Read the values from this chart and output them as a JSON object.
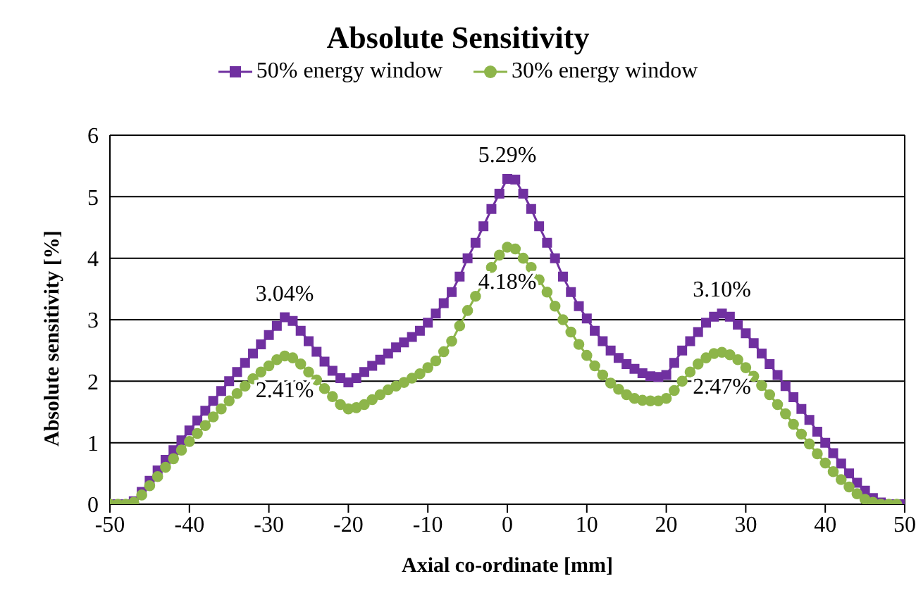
{
  "chart_data": {
    "type": "line",
    "title": "Absolute Sensitivity",
    "xlabel": "Axial co-ordinate [mm]",
    "ylabel": "Absolute sensitivity [%]",
    "x": [
      -50,
      -49,
      -48,
      -47,
      -46,
      -45,
      -44,
      -43,
      -42,
      -41,
      -40,
      -39,
      -38,
      -37,
      -36,
      -35,
      -34,
      -33,
      -32,
      -31,
      -30,
      -29,
      -28,
      -27,
      -26,
      -25,
      -24,
      -23,
      -22,
      -21,
      -20,
      -19,
      -18,
      -17,
      -16,
      -15,
      -14,
      -13,
      -12,
      -11,
      -10,
      -9,
      -8,
      -7,
      -6,
      -5,
      -4,
      -3,
      -2,
      -1,
      0,
      1,
      2,
      3,
      4,
      5,
      6,
      7,
      8,
      9,
      10,
      11,
      12,
      13,
      14,
      15,
      16,
      17,
      18,
      19,
      20,
      21,
      22,
      23,
      24,
      25,
      26,
      27,
      28,
      29,
      30,
      31,
      32,
      33,
      34,
      35,
      36,
      37,
      38,
      39,
      40,
      41,
      42,
      43,
      44,
      45,
      46,
      47,
      48,
      49,
      50
    ],
    "series": [
      {
        "name": "50% energy window",
        "color": "#7030a0",
        "marker": "square",
        "values": [
          0,
          0,
          0,
          0.05,
          0.2,
          0.38,
          0.55,
          0.72,
          0.88,
          1.04,
          1.2,
          1.36,
          1.52,
          1.68,
          1.84,
          2.0,
          2.15,
          2.3,
          2.45,
          2.6,
          2.75,
          2.9,
          3.04,
          2.98,
          2.82,
          2.65,
          2.48,
          2.32,
          2.17,
          2.05,
          1.98,
          2.05,
          2.15,
          2.25,
          2.35,
          2.45,
          2.55,
          2.63,
          2.72,
          2.82,
          2.95,
          3.1,
          3.27,
          3.45,
          3.7,
          4.0,
          4.25,
          4.52,
          4.8,
          5.05,
          5.29,
          5.28,
          5.05,
          4.8,
          4.52,
          4.25,
          4.0,
          3.7,
          3.45,
          3.22,
          3.02,
          2.82,
          2.65,
          2.5,
          2.38,
          2.28,
          2.2,
          2.13,
          2.08,
          2.07,
          2.1,
          2.3,
          2.5,
          2.65,
          2.8,
          2.95,
          3.05,
          3.1,
          3.05,
          2.92,
          2.78,
          2.62,
          2.45,
          2.28,
          2.1,
          1.92,
          1.74,
          1.55,
          1.37,
          1.18,
          1.0,
          0.83,
          0.66,
          0.5,
          0.35,
          0.22,
          0.1,
          0.03,
          0,
          0,
          0
        ]
      },
      {
        "name": "30% energy window",
        "color": "#8db54a",
        "marker": "circle",
        "values": [
          0,
          0,
          0,
          0.03,
          0.15,
          0.3,
          0.45,
          0.6,
          0.74,
          0.88,
          1.02,
          1.15,
          1.28,
          1.42,
          1.55,
          1.68,
          1.8,
          1.92,
          2.04,
          2.15,
          2.25,
          2.35,
          2.41,
          2.38,
          2.28,
          2.15,
          2.02,
          1.88,
          1.75,
          1.62,
          1.55,
          1.57,
          1.62,
          1.7,
          1.78,
          1.86,
          1.92,
          1.98,
          2.05,
          2.12,
          2.22,
          2.33,
          2.48,
          2.65,
          2.9,
          3.15,
          3.38,
          3.6,
          3.85,
          4.05,
          4.18,
          4.15,
          4.0,
          3.85,
          3.65,
          3.45,
          3.22,
          3.0,
          2.8,
          2.6,
          2.42,
          2.25,
          2.1,
          1.97,
          1.87,
          1.78,
          1.72,
          1.69,
          1.68,
          1.68,
          1.72,
          1.85,
          2.0,
          2.15,
          2.28,
          2.38,
          2.45,
          2.47,
          2.43,
          2.35,
          2.22,
          2.08,
          1.93,
          1.78,
          1.62,
          1.47,
          1.3,
          1.14,
          0.98,
          0.82,
          0.67,
          0.53,
          0.4,
          0.28,
          0.17,
          0.08,
          0.03,
          0,
          0,
          0,
          null
        ]
      }
    ],
    "xlim": [
      -50,
      50
    ],
    "xticks": [
      -50,
      -40,
      -30,
      -20,
      -10,
      0,
      10,
      20,
      30,
      40,
      50
    ],
    "ylim": [
      0,
      6
    ],
    "yticks": [
      0,
      1,
      2,
      3,
      4,
      5,
      6
    ],
    "grid": "y",
    "legend": "top",
    "annotations": [
      {
        "text": "3.04%",
        "x": -28,
        "y": 3.04
      },
      {
        "text": "2.41%",
        "x": -28,
        "y": 2.41
      },
      {
        "text": "5.29%",
        "x": 0,
        "y": 5.29
      },
      {
        "text": "4.18%",
        "x": 0,
        "y": 4.18
      },
      {
        "text": "3.10%",
        "x": 27,
        "y": 3.1
      },
      {
        "text": "2.47%",
        "x": 27,
        "y": 2.47
      }
    ]
  }
}
